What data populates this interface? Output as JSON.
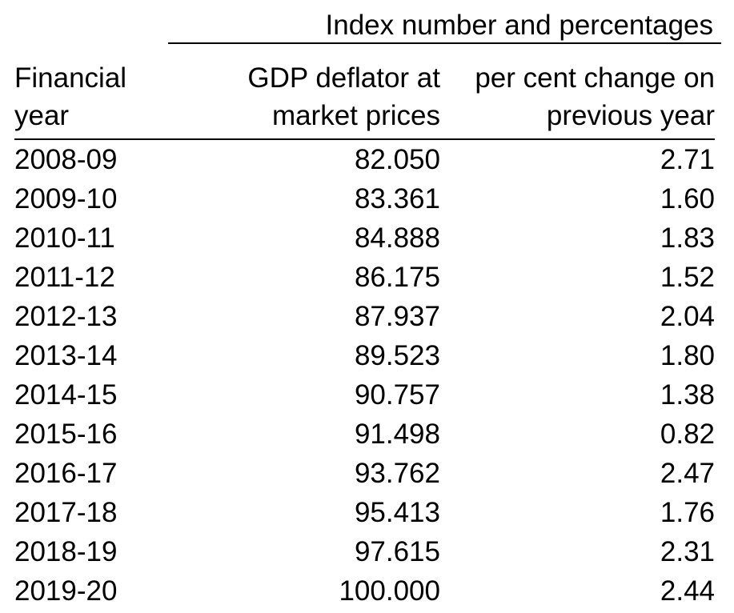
{
  "table": {
    "units_label": "Index number and percentages",
    "headers": {
      "year": [
        "Financial",
        "year"
      ],
      "deflator": [
        "GDP deflator at",
        "market prices"
      ],
      "change": [
        "per cent change on",
        "previous year"
      ]
    },
    "rows": [
      {
        "year": "2008-09",
        "deflator": "82.050",
        "change": "2.71"
      },
      {
        "year": "2009-10",
        "deflator": "83.361",
        "change": "1.60"
      },
      {
        "year": "2010-11",
        "deflator": "84.888",
        "change": "1.83"
      },
      {
        "year": "2011-12",
        "deflator": "86.175",
        "change": "1.52"
      },
      {
        "year": "2012-13",
        "deflator": "87.937",
        "change": "2.04"
      },
      {
        "year": "2013-14",
        "deflator": "89.523",
        "change": "1.80"
      },
      {
        "year": "2014-15",
        "deflator": "90.757",
        "change": "1.38"
      },
      {
        "year": "2015-16",
        "deflator": "91.498",
        "change": "0.82"
      },
      {
        "year": "2016-17",
        "deflator": "93.762",
        "change": "2.47"
      },
      {
        "year": "2017-18",
        "deflator": "95.413",
        "change": "1.76"
      },
      {
        "year": "2018-19",
        "deflator": "97.615",
        "change": "2.31"
      },
      {
        "year": "2019-20",
        "deflator": "100.000",
        "change": "2.44"
      }
    ]
  }
}
